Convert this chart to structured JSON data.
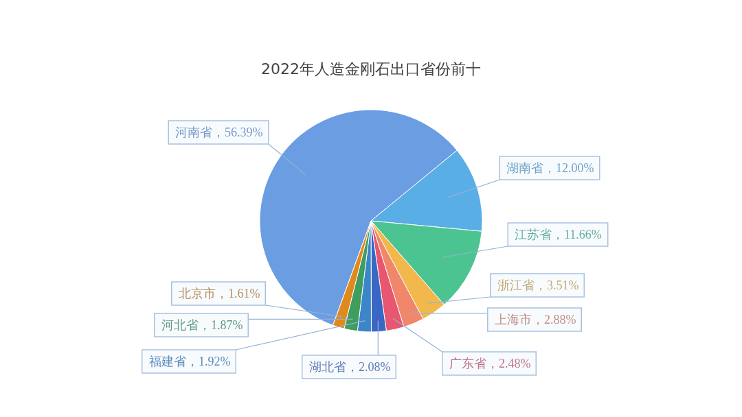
{
  "chart_data": {
    "type": "pie",
    "title": "2022年人造金刚石出口省份前十",
    "categories": [
      "河南省",
      "湖南省",
      "江苏省",
      "浙江省",
      "上海市",
      "广东省",
      "湖北省",
      "福建省",
      "河北省",
      "北京市"
    ],
    "values": [
      56.39,
      12.0,
      11.66,
      3.51,
      2.88,
      2.48,
      2.08,
      1.92,
      1.87,
      1.61
    ],
    "colors": [
      "#6b9de3",
      "#5aaee6",
      "#4cc491",
      "#f2b84b",
      "#f0876a",
      "#e9566f",
      "#3a66c4",
      "#3a86c8",
      "#3e9d5f",
      "#e08a1e"
    ],
    "value_labels": [
      "，56.39%",
      "，12.00%",
      "，11.66%",
      "，3.51%",
      "，2.88%",
      "，2.48%",
      "，2.08%",
      "，1.92%",
      "，1.87%",
      "，1.61%"
    ]
  }
}
